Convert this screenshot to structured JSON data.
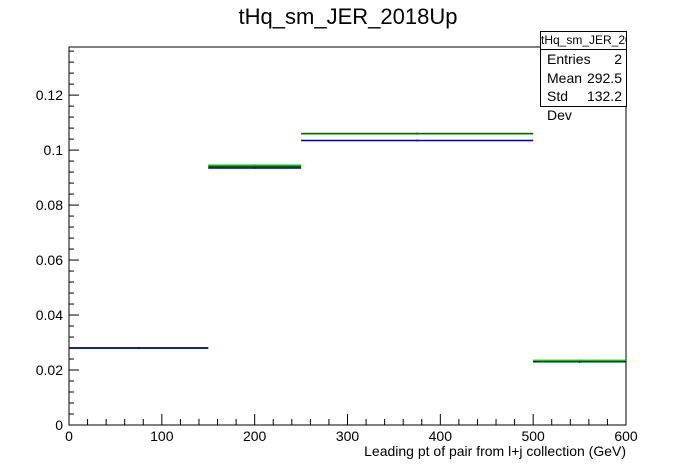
{
  "chart_data": {
    "type": "histogram",
    "title": "tHq_sm_JER_2018Up",
    "xlabel": "Leading pt of pair from l+j collection (GeV)",
    "ylabel": "",
    "xlim": [
      0,
      600
    ],
    "ylim": [
      0,
      0.1375
    ],
    "x_ticks": [
      0,
      100,
      200,
      300,
      400,
      500,
      600
    ],
    "y_ticks": [
      0,
      0.02,
      0.04,
      0.06,
      0.08,
      0.1,
      0.12
    ],
    "x_tick_labels": [
      "0",
      "100",
      "200",
      "300",
      "400",
      "500",
      "600"
    ],
    "y_tick_labels": [
      "0",
      "0.02",
      "0.04",
      "0.06",
      "0.08",
      "0.1",
      "0.12"
    ],
    "bin_edges": [
      0,
      150,
      250,
      500,
      600
    ],
    "series": [
      {
        "color": "#00cc00",
        "values": [
          0.028,
          0.0945,
          0.106,
          0.0235
        ]
      },
      {
        "color": "#006600",
        "values": [
          0.028,
          0.094,
          0.106,
          0.023
        ]
      },
      {
        "color": "#000099",
        "values": [
          0.028,
          0.0935,
          0.1035,
          0.023
        ]
      }
    ],
    "grid": false,
    "legend": "none"
  },
  "stats": {
    "title": "tHq_sm_JER_2018Up",
    "entries_label": "Entries",
    "entries_value": "2",
    "mean_label": "Mean",
    "mean_value": "292.5",
    "stddev_label": "Std Dev",
    "stddev_value": "132.2"
  }
}
